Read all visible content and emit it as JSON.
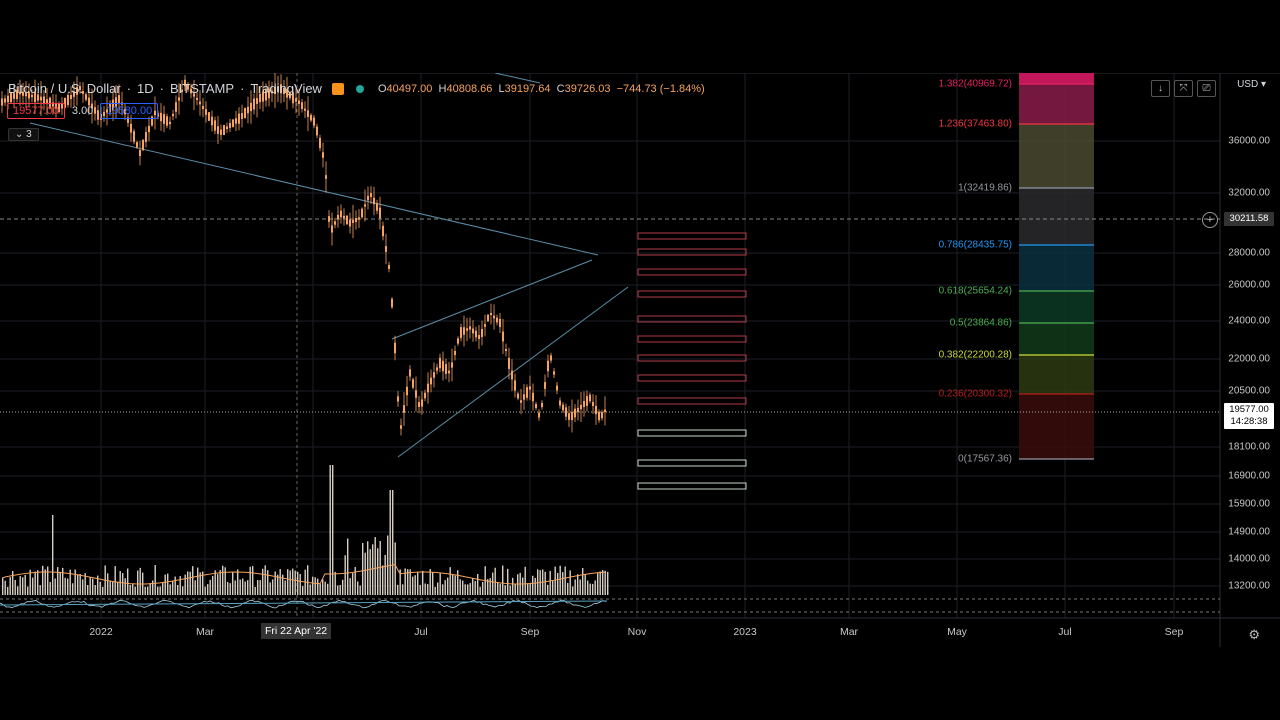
{
  "header": {
    "symbol": "Bitcoin / U.S. Dollar",
    "interval": "1D",
    "exchange": "BITSTAMP",
    "source": "TradingView",
    "ohlc": {
      "open_label": "O",
      "open": "40497.00",
      "high_label": "H",
      "high": "40808.66",
      "low_label": "L",
      "low": "39197.64",
      "close_label": "C",
      "close": "39726.03",
      "change": "−744.73 (−1.84%)"
    }
  },
  "bidask": {
    "bid": "19577.00",
    "spread": "3.00",
    "ask": "19580.00"
  },
  "indicators_toggle": "⌄ 3",
  "top_tools": [
    "↓",
    "⤧",
    "⎚"
  ],
  "currency": "USD ▾",
  "price_axis": {
    "ticks": [
      "36000.00",
      "32000.00",
      "28000.00",
      "26000.00",
      "24000.00",
      "22000.00",
      "20500.00",
      "18100.00",
      "16900.00",
      "15900.00",
      "14900.00",
      "14000.00",
      "13200.00"
    ],
    "crosshair_price": "30211.58",
    "last_price": "19577.00",
    "countdown": "14:28:38"
  },
  "time_axis": {
    "ticks": [
      "2022",
      "Mar",
      "Jul",
      "Sep",
      "Nov",
      "2023",
      "Mar",
      "May",
      "Jul",
      "Sep"
    ],
    "crosshair_date": "Fri 22 Apr '22"
  },
  "fib_levels": [
    {
      "label": "1.382(40969.72)",
      "color": "#e91e63"
    },
    {
      "label": "1.236(37463.80)",
      "color": "#f23645"
    },
    {
      "label": "1(32419.86)",
      "color": "#9598a1"
    },
    {
      "label": "0.786(28435.75)",
      "color": "#2196f3"
    },
    {
      "label": "0.618(25654.24)",
      "color": "#4caf50"
    },
    {
      "label": "0.5(23864.86)",
      "color": "#4caf50"
    },
    {
      "label": "0.382(22200.28)",
      "color": "#cddc39"
    },
    {
      "label": "0.236(20300.32)",
      "color": "#b71c1c"
    },
    {
      "label": "0(17567.36)",
      "color": "#9598a1"
    }
  ],
  "colors": {
    "candle": "#f7a35c",
    "trendline": "#5a8da8",
    "grid": "#1b1e25",
    "bid": "#f23645",
    "ask": "#2962ff"
  },
  "icons": {
    "settings": "gear-icon",
    "add_alert": "plus-icon",
    "brand": "tradingview-logo-icon"
  }
}
